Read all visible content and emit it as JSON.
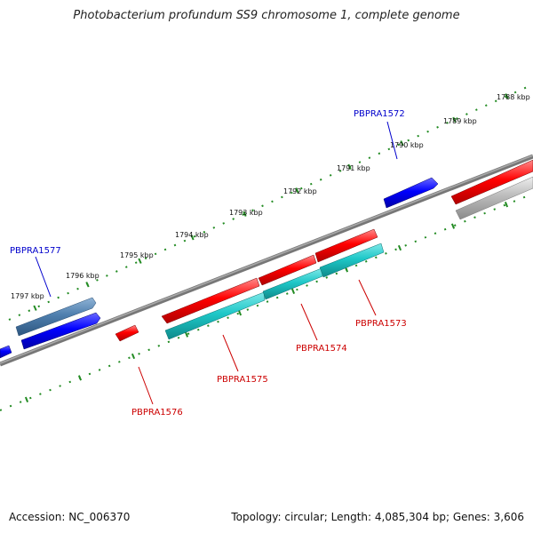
{
  "title": "Photobacterium profundum SS9 chromosome 1, complete genome",
  "footer": {
    "accession": "Accession: NC_006370",
    "summary": "Topology: circular; Length: 4,085,304 bp; Genes: 3,606"
  },
  "ticks": [
    "1788 kbp",
    "1789 kbp",
    "1790 kbp",
    "1791 kbp",
    "1792 kbp",
    "1793 kbp",
    "1794 kbp",
    "1795 kbp",
    "1796 kbp",
    "1797 kbp"
  ],
  "genes": {
    "pbpra1572": "PBPRA1572",
    "pbpra1577": "PBPRA1577",
    "pbpra1573": "PBPRA1573",
    "pbpra1574": "PBPRA1574",
    "pbpra1575": "PBPRA1575",
    "pbpra1576": "PBPRA1576"
  },
  "colors": {
    "forward_gene": "#0000ff",
    "forward_cds": "#4f7fae",
    "reverse_gene": "#ff0000",
    "reverse_cds": "#1ec8c8",
    "pseudo": "#bbbbbb",
    "backbone": "#777777",
    "ticks": "#228b22",
    "forward_label": "#0000cc",
    "reverse_label": "#cc0000"
  }
}
